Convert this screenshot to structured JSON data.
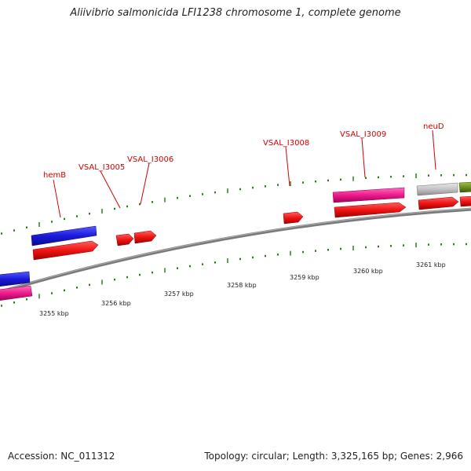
{
  "title": "Aliivibrio salmonicida LFI1238 chromosome 1, complete genome",
  "footer": {
    "accession": "Accession: NC_011312",
    "summary": "Topology: circular; Length: 3,325,165 bp; Genes: 2,966"
  },
  "colors": {
    "backbone": "#808080",
    "tick": "#2e7d1e",
    "label": "#d40000",
    "gene_blue": "#1a1adc",
    "gene_red": "#f01414",
    "gene_pink": "#ee1a8c",
    "gene_gray": "#c4c4c4",
    "gene_olive": "#6e8f1e"
  },
  "scale_labels": [
    "3255 kbp",
    "3256 kbp",
    "3257 kbp",
    "3258 kbp",
    "3259 kbp",
    "3260 kbp",
    "3261 kbp"
  ],
  "gene_labels": [
    "hemB",
    "VSAL_I3005",
    "VSAL_I3006",
    "VSAL_I3008",
    "VSAL_I3009",
    "neuD"
  ],
  "features": [
    {
      "color": "gene_blue",
      "label": "hemB"
    },
    {
      "color": "gene_red",
      "label": ""
    },
    {
      "color": "gene_red",
      "label": "VSAL_I3005"
    },
    {
      "color": "gene_red",
      "label": "VSAL_I3006"
    },
    {
      "color": "gene_red",
      "label": "VSAL_I3008"
    },
    {
      "color": "gene_pink",
      "label": "VSAL_I3009"
    },
    {
      "color": "gene_red",
      "label": ""
    },
    {
      "color": "gene_gray",
      "label": "neuD"
    },
    {
      "color": "gene_red",
      "label": ""
    },
    {
      "color": "gene_olive",
      "label": ""
    },
    {
      "color": "gene_red",
      "label": ""
    },
    {
      "color": "gene_blue",
      "label": ""
    },
    {
      "color": "gene_pink",
      "label": ""
    }
  ]
}
